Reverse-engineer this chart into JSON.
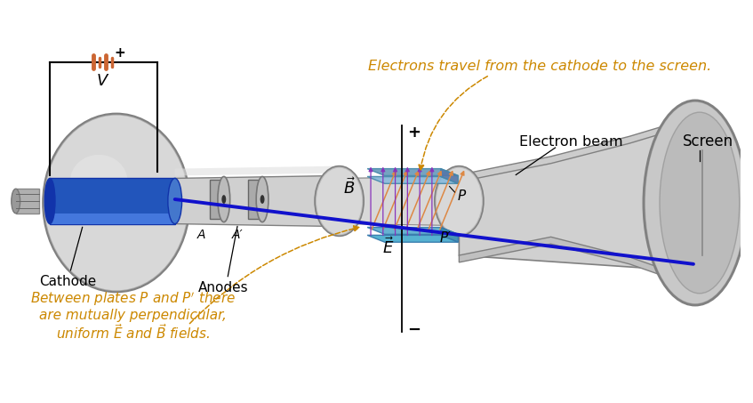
{
  "bg_color": "#ffffff",
  "tube_light": "#d0d0d0",
  "tube_mid": "#b8b8b8",
  "tube_dark": "#909090",
  "tube_edge": "#808080",
  "cathode_blue": "#3366cc",
  "cathode_blue_light": "#5588ee",
  "beam_color": "#1111cc",
  "plate_top_color": "#77aacc",
  "plate_bot_color": "#55bbcc",
  "arrow_B_color": "#cc7700",
  "arrow_E_color": "#7733aa",
  "text_orange": "#cc8800",
  "text_black": "#111111",
  "battery_color": "#cc6633",
  "annotation_color": "#cc8800",
  "title_top": "Electrons travel from the cathode to the screen.",
  "label_cathode": "Cathode",
  "label_anodes": "Anodes",
  "label_screen": "Screen",
  "label_beam": "Electron beam",
  "label_V": "V"
}
